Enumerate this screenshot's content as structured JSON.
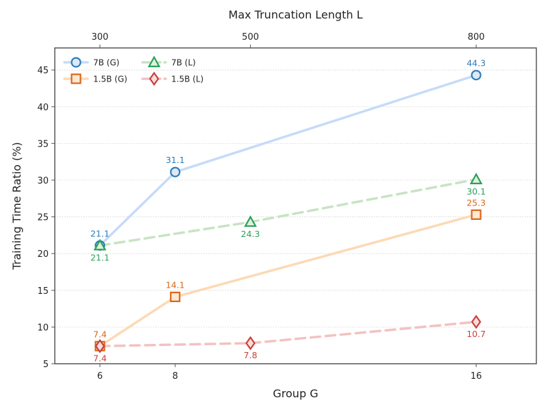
{
  "chart_data": {
    "type": "line",
    "title": "",
    "xlabel": "Group G",
    "x2label": "Max Truncation Length L",
    "ylabel": "Training Time Ratio (%)",
    "ylim": [
      5,
      48
    ],
    "yticks": [
      5,
      10,
      15,
      20,
      25,
      30,
      35,
      40,
      45
    ],
    "xlim": [
      4.8,
      17.6
    ],
    "xticks": [
      6,
      8,
      16
    ],
    "x2lim": [
      240,
      880
    ],
    "x2ticks": [
      300,
      500,
      800
    ],
    "grid": "horizontal dotted",
    "legend_position": "top-left",
    "series": [
      {
        "name": "7B (G)",
        "axis": "bottom",
        "x": [
          6,
          8,
          16
        ],
        "values": [
          21.1,
          31.1,
          44.3
        ],
        "labels": [
          "21.1",
          "31.1",
          "44.3"
        ],
        "label_pos": "above",
        "marker": "circle",
        "line_color": "#c6dbf7",
        "marker_color": "#2b7bba",
        "label_color": "#2b7bba",
        "dash": "solid"
      },
      {
        "name": "1.5B (G)",
        "axis": "bottom",
        "x": [
          6,
          8,
          16
        ],
        "values": [
          7.4,
          14.1,
          25.3
        ],
        "labels": [
          "7.4",
          "14.1",
          "25.3"
        ],
        "label_pos": "above",
        "marker": "square",
        "line_color": "#fcd9b5",
        "marker_color": "#d9661a",
        "label_color": "#d9661a",
        "dash": "solid"
      },
      {
        "name": "7B (L)",
        "axis": "top",
        "x": [
          300,
          500,
          800
        ],
        "values": [
          21.1,
          24.3,
          30.1
        ],
        "labels": [
          "21.1",
          "24.3",
          "30.1"
        ],
        "label_pos": "below",
        "marker": "triangle",
        "line_color": "#c8e3c4",
        "marker_color": "#2ca05a",
        "label_color": "#2ca05a",
        "dash": "dashed"
      },
      {
        "name": "1.5B (L)",
        "axis": "top",
        "x": [
          300,
          500,
          800
        ],
        "values": [
          7.4,
          7.8,
          10.7
        ],
        "labels": [
          "7.4",
          "7.8",
          "10.7"
        ],
        "label_pos": "below",
        "marker": "diamond",
        "line_color": "#f2c2c0",
        "marker_color": "#c8403a",
        "label_color": "#c8403a",
        "dash": "dashed"
      }
    ]
  }
}
